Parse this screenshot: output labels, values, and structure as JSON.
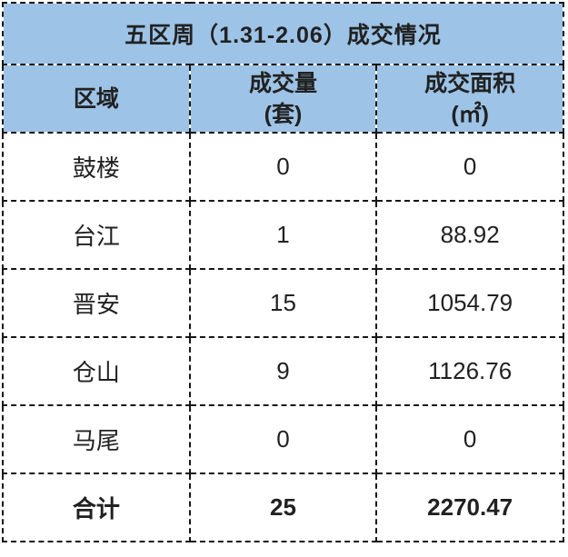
{
  "table": {
    "title": "五区周（1.31-2.06）成交情况",
    "columns": [
      {
        "label": "区域",
        "unit": ""
      },
      {
        "label": "成交量",
        "unit": "(套)"
      },
      {
        "label": "成交面积",
        "unit": "(㎡)"
      }
    ],
    "rows": [
      {
        "region": "鼓楼",
        "volume": "0",
        "area": "0"
      },
      {
        "region": "台江",
        "volume": "1",
        "area": "88.92"
      },
      {
        "region": "晋安",
        "volume": "15",
        "area": "1054.79"
      },
      {
        "region": "仓山",
        "volume": "9",
        "area": "1126.76"
      },
      {
        "region": "马尾",
        "volume": "0",
        "area": "0"
      }
    ],
    "total": {
      "label": "合计",
      "volume": "25",
      "area": "2270.47"
    }
  },
  "colors": {
    "header_bg": "#9dc3e6",
    "body_bg": "#ffffff",
    "text": "#212121",
    "total_text": "#ff0000",
    "border": "#161616"
  },
  "chart_data": {
    "type": "table",
    "title": "五区周（1.31-2.06）成交情况",
    "columns": [
      "区域",
      "成交量(套)",
      "成交面积(㎡)"
    ],
    "rows": [
      [
        "鼓楼",
        0,
        0
      ],
      [
        "台江",
        1,
        88.92
      ],
      [
        "晋安",
        15,
        1054.79
      ],
      [
        "仓山",
        9,
        1126.76
      ],
      [
        "马尾",
        0,
        0
      ]
    ],
    "total_row": [
      "合计",
      25,
      2270.47
    ],
    "layout_hints": {
      "title_and_header_background": "#9dc3e6",
      "total_row_color": "#ff0000",
      "border_style": "dashed black",
      "cell_alignment": "center"
    }
  }
}
